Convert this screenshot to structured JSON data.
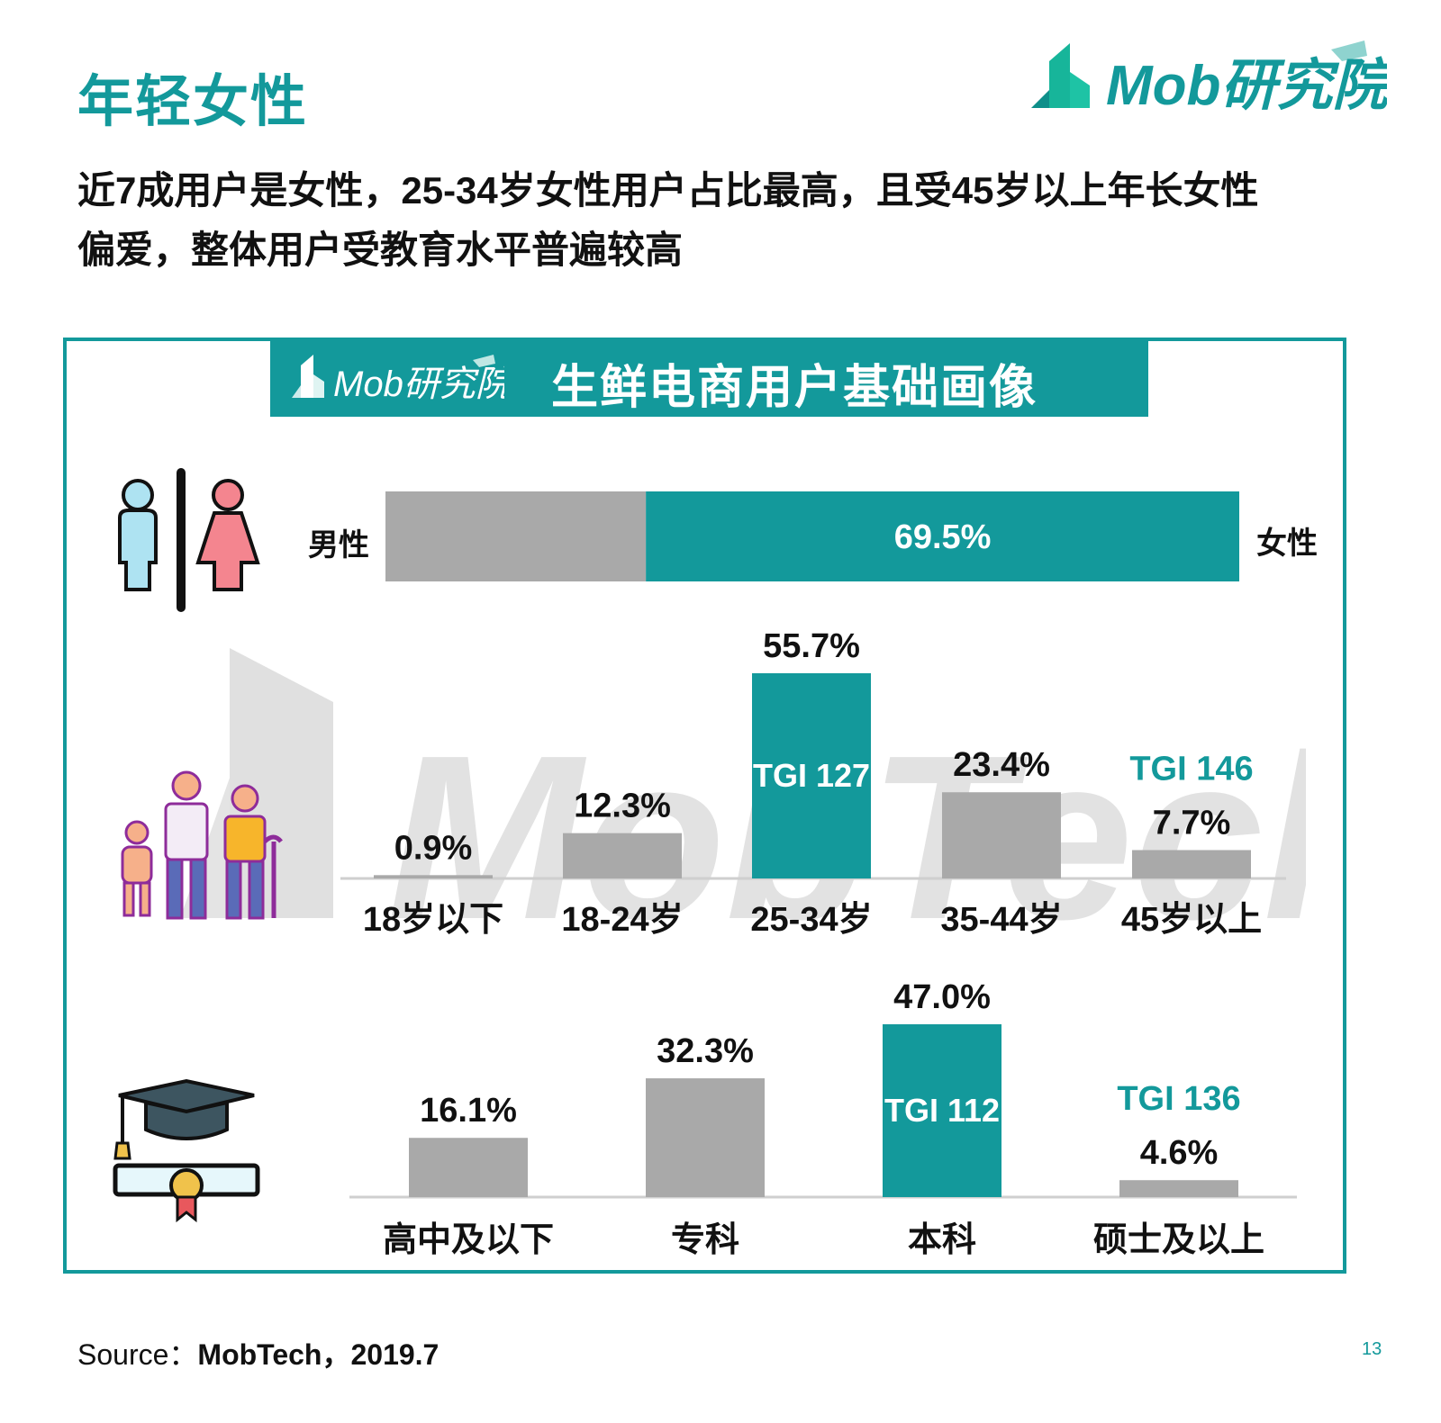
{
  "header": {
    "title": "年轻女性",
    "logo_text": "Mob研究院",
    "subtitle_lines": [
      "近7成用户是女性，25-34岁女性用户占比最高，且受45岁以上年长女性",
      "偏爱，整体用户受教育水平普遍较高"
    ]
  },
  "panel": {
    "banner_title": "生鲜电商用户基础画像",
    "banner_logo_text": "Mob研究院",
    "watermark_text": "MobTech"
  },
  "colors": {
    "accent": "#13999b",
    "bar_gray": "#a9a9a9",
    "male_icon": "#aee3f2",
    "female_icon": "#f4858f"
  },
  "icons": {
    "gender": "gender-male-female-icon",
    "age": "family-generations-icon",
    "education": "graduation-cap-diploma-icon"
  },
  "chart_data": [
    {
      "type": "bar",
      "orientation": "horizontal-stacked",
      "categories": [
        "男性",
        "女性"
      ],
      "values": [
        30.5,
        69.5
      ],
      "labels": [
        "",
        "69.5%"
      ],
      "left_label": "男性",
      "right_label": "女性",
      "xlim": [
        0,
        100
      ]
    },
    {
      "type": "bar",
      "categories": [
        "18岁以下",
        "18-24岁",
        "25-34岁",
        "35-44岁",
        "45岁以上"
      ],
      "values": [
        0.9,
        12.3,
        55.7,
        23.4,
        7.7
      ],
      "labels": [
        "0.9%",
        "12.3%",
        "55.7%",
        "23.4%",
        "7.7%"
      ],
      "highlight_index": 2,
      "annotations": [
        {
          "category": "25-34岁",
          "text": "TGI 127",
          "position": "inside"
        },
        {
          "category": "45岁以上",
          "text": "TGI 146",
          "position": "above"
        }
      ],
      "ylim": [
        0,
        55.7
      ]
    },
    {
      "type": "bar",
      "categories": [
        "高中及以下",
        "专科",
        "本科",
        "硕士及以上"
      ],
      "values": [
        16.1,
        32.3,
        47.0,
        4.6
      ],
      "labels": [
        "16.1%",
        "32.3%",
        "47.0%",
        "4.6%"
      ],
      "highlight_index": 2,
      "annotations": [
        {
          "category": "本科",
          "text": "TGI 112",
          "position": "inside"
        },
        {
          "category": "硕士及以上",
          "text": "TGI 136",
          "position": "above"
        }
      ],
      "ylim": [
        0,
        47.0
      ]
    }
  ],
  "footer": {
    "source_label": "Source：",
    "source_value": "MobTech，2019.7",
    "page_number": "13"
  }
}
